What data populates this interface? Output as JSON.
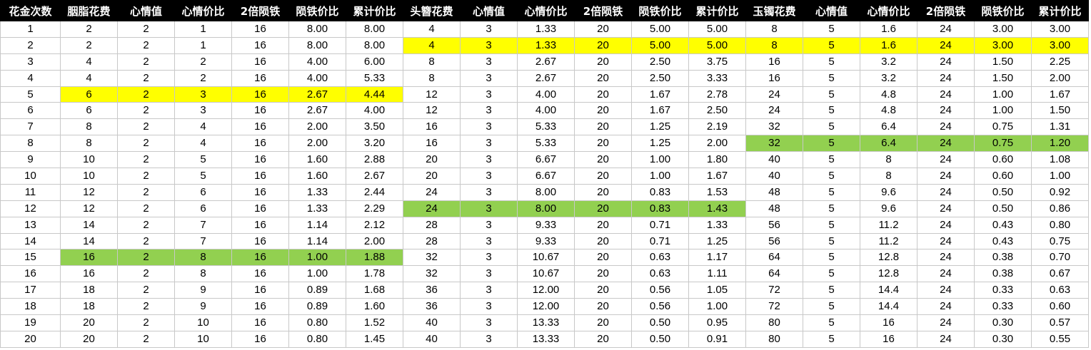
{
  "colors": {
    "header_bg": "#000000",
    "header_fg": "#ffffff",
    "yellow": "#ffff00",
    "green": "#92d050",
    "grid": "#c8c8c8"
  },
  "headers": [
    "花金次数",
    "胭脂花费",
    "心情值",
    "心情价比",
    "2倍陨铁",
    "陨铁价比",
    "累计价比",
    "头簪花费",
    "心情值",
    "心情价比",
    "2倍陨铁",
    "陨铁价比",
    "累计价比",
    "玉镯花费",
    "心情值",
    "心情价比",
    "2倍陨铁",
    "陨铁价比",
    "累计价比"
  ],
  "rows": [
    [
      "1",
      "2",
      "2",
      "1",
      "16",
      "8.00",
      "8.00",
      "4",
      "3",
      "1.33",
      "20",
      "5.00",
      "5.00",
      "8",
      "5",
      "1.6",
      "24",
      "3.00",
      "3.00"
    ],
    [
      "2",
      "2",
      "2",
      "1",
      "16",
      "8.00",
      "8.00",
      "4",
      "3",
      "1.33",
      "20",
      "5.00",
      "5.00",
      "8",
      "5",
      "1.6",
      "24",
      "3.00",
      "3.00"
    ],
    [
      "3",
      "4",
      "2",
      "2",
      "16",
      "4.00",
      "6.00",
      "8",
      "3",
      "2.67",
      "20",
      "2.50",
      "3.75",
      "16",
      "5",
      "3.2",
      "24",
      "1.50",
      "2.25"
    ],
    [
      "4",
      "4",
      "2",
      "2",
      "16",
      "4.00",
      "5.33",
      "8",
      "3",
      "2.67",
      "20",
      "2.50",
      "3.33",
      "16",
      "5",
      "3.2",
      "24",
      "1.50",
      "2.00"
    ],
    [
      "5",
      "6",
      "2",
      "3",
      "16",
      "2.67",
      "4.44",
      "12",
      "3",
      "4.00",
      "20",
      "1.67",
      "2.78",
      "24",
      "5",
      "4.8",
      "24",
      "1.00",
      "1.67"
    ],
    [
      "6",
      "6",
      "2",
      "3",
      "16",
      "2.67",
      "4.00",
      "12",
      "3",
      "4.00",
      "20",
      "1.67",
      "2.50",
      "24",
      "5",
      "4.8",
      "24",
      "1.00",
      "1.50"
    ],
    [
      "7",
      "8",
      "2",
      "4",
      "16",
      "2.00",
      "3.50",
      "16",
      "3",
      "5.33",
      "20",
      "1.25",
      "2.19",
      "32",
      "5",
      "6.4",
      "24",
      "0.75",
      "1.31"
    ],
    [
      "8",
      "8",
      "2",
      "4",
      "16",
      "2.00",
      "3.20",
      "16",
      "3",
      "5.33",
      "20",
      "1.25",
      "2.00",
      "32",
      "5",
      "6.4",
      "24",
      "0.75",
      "1.20"
    ],
    [
      "9",
      "10",
      "2",
      "5",
      "16",
      "1.60",
      "2.88",
      "20",
      "3",
      "6.67",
      "20",
      "1.00",
      "1.80",
      "40",
      "5",
      "8",
      "24",
      "0.60",
      "1.08"
    ],
    [
      "10",
      "10",
      "2",
      "5",
      "16",
      "1.60",
      "2.67",
      "20",
      "3",
      "6.67",
      "20",
      "1.00",
      "1.67",
      "40",
      "5",
      "8",
      "24",
      "0.60",
      "1.00"
    ],
    [
      "11",
      "12",
      "2",
      "6",
      "16",
      "1.33",
      "2.44",
      "24",
      "3",
      "8.00",
      "20",
      "0.83",
      "1.53",
      "48",
      "5",
      "9.6",
      "24",
      "0.50",
      "0.92"
    ],
    [
      "12",
      "12",
      "2",
      "6",
      "16",
      "1.33",
      "2.29",
      "24",
      "3",
      "8.00",
      "20",
      "0.83",
      "1.43",
      "48",
      "5",
      "9.6",
      "24",
      "0.50",
      "0.86"
    ],
    [
      "13",
      "14",
      "2",
      "7",
      "16",
      "1.14",
      "2.12",
      "28",
      "3",
      "9.33",
      "20",
      "0.71",
      "1.33",
      "56",
      "5",
      "11.2",
      "24",
      "0.43",
      "0.80"
    ],
    [
      "14",
      "14",
      "2",
      "7",
      "16",
      "1.14",
      "2.00",
      "28",
      "3",
      "9.33",
      "20",
      "0.71",
      "1.25",
      "56",
      "5",
      "11.2",
      "24",
      "0.43",
      "0.75"
    ],
    [
      "15",
      "16",
      "2",
      "8",
      "16",
      "1.00",
      "1.88",
      "32",
      "3",
      "10.67",
      "20",
      "0.63",
      "1.17",
      "64",
      "5",
      "12.8",
      "24",
      "0.38",
      "0.70"
    ],
    [
      "16",
      "16",
      "2",
      "8",
      "16",
      "1.00",
      "1.78",
      "32",
      "3",
      "10.67",
      "20",
      "0.63",
      "1.11",
      "64",
      "5",
      "12.8",
      "24",
      "0.38",
      "0.67"
    ],
    [
      "17",
      "18",
      "2",
      "9",
      "16",
      "0.89",
      "1.68",
      "36",
      "3",
      "12.00",
      "20",
      "0.56",
      "1.05",
      "72",
      "5",
      "14.4",
      "24",
      "0.33",
      "0.63"
    ],
    [
      "18",
      "18",
      "2",
      "9",
      "16",
      "0.89",
      "1.60",
      "36",
      "3",
      "12.00",
      "20",
      "0.56",
      "1.00",
      "72",
      "5",
      "14.4",
      "24",
      "0.33",
      "0.60"
    ],
    [
      "19",
      "20",
      "2",
      "10",
      "16",
      "0.80",
      "1.52",
      "40",
      "3",
      "13.33",
      "20",
      "0.50",
      "0.95",
      "80",
      "5",
      "16",
      "24",
      "0.30",
      "0.57"
    ],
    [
      "20",
      "20",
      "2",
      "10",
      "16",
      "0.80",
      "1.45",
      "40",
      "3",
      "13.33",
      "20",
      "0.50",
      "0.91",
      "80",
      "5",
      "16",
      "24",
      "0.30",
      "0.55"
    ]
  ],
  "highlights": [
    {
      "row": 1,
      "from": 7,
      "to": 18,
      "color": "yellow"
    },
    {
      "row": 4,
      "from": 1,
      "to": 6,
      "color": "yellow"
    },
    {
      "row": 7,
      "from": 13,
      "to": 18,
      "color": "green"
    },
    {
      "row": 11,
      "from": 7,
      "to": 12,
      "color": "green"
    },
    {
      "row": 14,
      "from": 1,
      "to": 6,
      "color": "green"
    }
  ]
}
